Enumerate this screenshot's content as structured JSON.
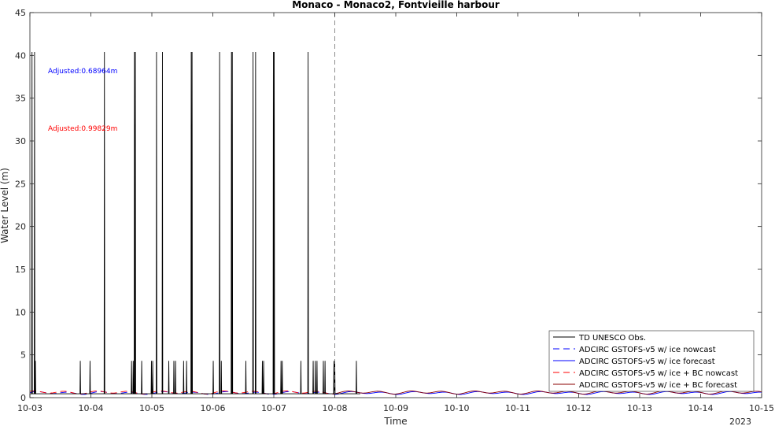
{
  "chart_data": {
    "type": "line",
    "title": "Monaco - Monaco2, Fontvieille harbour",
    "xlabel": "Time",
    "ylabel": "Water Level (m)",
    "year_label": "2023",
    "xlim": [
      "2023-10-03",
      "2023-10-15"
    ],
    "ylim": [
      0,
      45
    ],
    "yticks": [
      0,
      5,
      10,
      15,
      20,
      25,
      30,
      35,
      40,
      45
    ],
    "xticks": [
      "10-03",
      "10-04",
      "10-05",
      "10-06",
      "10-07",
      "10-08",
      "10-09",
      "10-10",
      "10-11",
      "10-12",
      "10-13",
      "10-14",
      "10-15"
    ],
    "grid": false,
    "nowcast_forecast_boundary": "2023-10-08",
    "legend_position": "bottom-right",
    "annotations": [
      {
        "text": "Adjusted:0.68964m",
        "color": "#0000ff"
      },
      {
        "text": "Adjusted:0.99829m",
        "color": "#ff0000"
      }
    ],
    "series": [
      {
        "name": "TD UNESCO Obs.",
        "color": "#000000",
        "dash": "solid",
        "baseline": 0.45,
        "range": [
          "2023-10-03",
          "2023-10-08 10:00"
        ],
        "spikes": [
          {
            "t": "2023-10-03 00:50",
            "v": 40.4
          },
          {
            "t": "2023-10-03 01:50",
            "v": 40.4
          },
          {
            "t": "2023-10-03 02:10",
            "v": 4.3
          },
          {
            "t": "2023-10-03 19:50",
            "v": 4.3
          },
          {
            "t": "2023-10-03 23:40",
            "v": 4.3
          },
          {
            "t": "2023-10-04 05:20",
            "v": 40.4
          },
          {
            "t": "2023-10-04 16:00",
            "v": 4.3
          },
          {
            "t": "2023-10-04 16:40",
            "v": 4.3
          },
          {
            "t": "2023-10-04 17:10",
            "v": 40.4
          },
          {
            "t": "2023-10-04 17:30",
            "v": 40.4
          },
          {
            "t": "2023-10-04 20:00",
            "v": 4.3
          },
          {
            "t": "2023-10-04 23:50",
            "v": 4.3
          },
          {
            "t": "2023-10-05 00:20",
            "v": 4.3
          },
          {
            "t": "2023-10-05 01:50",
            "v": 40.4
          },
          {
            "t": "2023-10-05 04:10",
            "v": 40.4
          },
          {
            "t": "2023-10-05 06:40",
            "v": 4.3
          },
          {
            "t": "2023-10-05 08:40",
            "v": 4.3
          },
          {
            "t": "2023-10-05 09:20",
            "v": 4.3
          },
          {
            "t": "2023-10-05 12:30",
            "v": 4.3
          },
          {
            "t": "2023-10-05 13:40",
            "v": 4.3
          },
          {
            "t": "2023-10-05 15:30",
            "v": 40.4
          },
          {
            "t": "2023-10-05 15:50",
            "v": 40.4
          },
          {
            "t": "2023-10-06 00:10",
            "v": 4.3
          },
          {
            "t": "2023-10-06 02:40",
            "v": 40.4
          },
          {
            "t": "2023-10-06 03:20",
            "v": 4.3
          },
          {
            "t": "2023-10-06 07:20",
            "v": 40.4
          },
          {
            "t": "2023-10-06 07:40",
            "v": 40.4
          },
          {
            "t": "2023-10-06 13:00",
            "v": 4.3
          },
          {
            "t": "2023-10-06 15:50",
            "v": 40.4
          },
          {
            "t": "2023-10-06 16:50",
            "v": 40.4
          },
          {
            "t": "2023-10-06 19:30",
            "v": 4.3
          },
          {
            "t": "2023-10-06 20:00",
            "v": 4.3
          },
          {
            "t": "2023-10-06 23:50",
            "v": 40.4
          },
          {
            "t": "2023-10-07 00:10",
            "v": 40.4
          },
          {
            "t": "2023-10-07 02:50",
            "v": 4.3
          },
          {
            "t": "2023-10-07 03:20",
            "v": 4.3
          },
          {
            "t": "2023-10-07 10:40",
            "v": 4.3
          },
          {
            "t": "2023-10-07 13:30",
            "v": 40.4
          },
          {
            "t": "2023-10-07 15:30",
            "v": 4.3
          },
          {
            "t": "2023-10-07 16:20",
            "v": 4.3
          },
          {
            "t": "2023-10-07 17:00",
            "v": 4.3
          },
          {
            "t": "2023-10-07 19:30",
            "v": 4.3
          },
          {
            "t": "2023-10-07 20:10",
            "v": 4.3
          },
          {
            "t": "2023-10-07 23:40",
            "v": 4.3
          },
          {
            "t": "2023-10-08 00:00",
            "v": 4.3
          },
          {
            "t": "2023-10-08 08:30",
            "v": 4.3
          }
        ]
      },
      {
        "name": "ADCIRC GSTOFS-v5 w/ ice nowcast",
        "color": "#0000ff",
        "dash": "dashed",
        "range": [
          "2023-10-03",
          "2023-10-08"
        ],
        "mean": 0.55,
        "amplitude": 0.12
      },
      {
        "name": "ADCIRC GSTOFS-v5 w/ ice forecast",
        "color": "#0000ff",
        "dash": "solid",
        "range": [
          "2023-10-08",
          "2023-10-15"
        ],
        "mean": 0.55,
        "amplitude": 0.12
      },
      {
        "name": "ADCIRC GSTOFS-v5 w/ ice + BC nowcast",
        "color": "#ff0000",
        "dash": "dashed",
        "range": [
          "2023-10-03",
          "2023-10-08"
        ],
        "mean": 0.62,
        "amplitude": 0.14
      },
      {
        "name": "ADCIRC GSTOFS-v5 w/ ice + BC forecast",
        "color": "#8b0000",
        "dash": "solid",
        "range": [
          "2023-10-08",
          "2023-10-15"
        ],
        "mean": 0.62,
        "amplitude": 0.14
      }
    ]
  }
}
